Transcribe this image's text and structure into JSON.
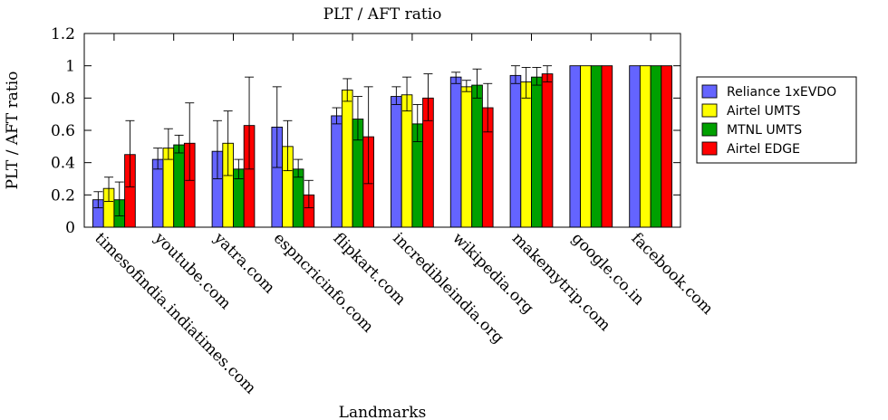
{
  "chart_data": {
    "type": "bar",
    "title": "PLT / AFT ratio",
    "xlabel": "Landmarks",
    "ylabel": "PLT / AFT ratio",
    "ylim": [
      0,
      1.2
    ],
    "yticks": [
      "0",
      "0.2",
      "0.4",
      "0.6",
      "0.8",
      "1",
      "1.2"
    ],
    "grid": false,
    "legend_position": "right",
    "error_bars": true,
    "categories": [
      "timesofindia.indiatimes.com",
      "youtube.com",
      "yatra.com",
      "espncricinfo.com",
      "flipkart.com",
      "incredibleindia.org",
      "wikipedia.org",
      "makemytrip.com",
      "google.co.in",
      "facebook.com"
    ],
    "series": [
      {
        "name": "Reliance 1xEVDO",
        "color": "#6464ff",
        "values": [
          0.17,
          0.42,
          0.47,
          0.62,
          0.69,
          0.81,
          0.93,
          0.94,
          1.0,
          1.0
        ],
        "err_low": [
          0.12,
          0.36,
          0.3,
          0.37,
          0.64,
          0.76,
          0.89,
          0.89,
          1.0,
          1.0
        ],
        "err_high": [
          0.22,
          0.49,
          0.66,
          0.87,
          0.74,
          0.87,
          0.96,
          1.0,
          1.0,
          1.0
        ]
      },
      {
        "name": "Airtel UMTS",
        "color": "#ffff00",
        "values": [
          0.24,
          0.49,
          0.52,
          0.5,
          0.85,
          0.82,
          0.87,
          0.9,
          1.0,
          1.0
        ],
        "err_low": [
          0.16,
          0.42,
          0.32,
          0.35,
          0.78,
          0.72,
          0.84,
          0.8,
          1.0,
          1.0
        ],
        "err_high": [
          0.31,
          0.61,
          0.72,
          0.66,
          0.92,
          0.93,
          0.91,
          0.99,
          1.0,
          1.0
        ]
      },
      {
        "name": "MTNL UMTS",
        "color": "#00a000",
        "values": [
          0.17,
          0.51,
          0.36,
          0.36,
          0.67,
          0.64,
          0.88,
          0.93,
          1.0,
          1.0
        ],
        "err_low": [
          0.07,
          0.46,
          0.3,
          0.31,
          0.54,
          0.53,
          0.8,
          0.88,
          1.0,
          1.0
        ],
        "err_high": [
          0.28,
          0.57,
          0.42,
          0.42,
          0.81,
          0.76,
          0.98,
          0.99,
          1.0,
          1.0
        ]
      },
      {
        "name": "Airtel EDGE",
        "color": "#ff0000",
        "values": [
          0.45,
          0.52,
          0.63,
          0.2,
          0.56,
          0.8,
          0.74,
          0.95,
          1.0,
          1.0
        ],
        "err_low": [
          0.25,
          0.29,
          0.36,
          0.12,
          0.27,
          0.66,
          0.59,
          0.9,
          1.0,
          1.0
        ],
        "err_high": [
          0.66,
          0.77,
          0.93,
          0.29,
          0.87,
          0.95,
          0.89,
          1.0,
          1.0,
          1.0
        ]
      }
    ]
  }
}
